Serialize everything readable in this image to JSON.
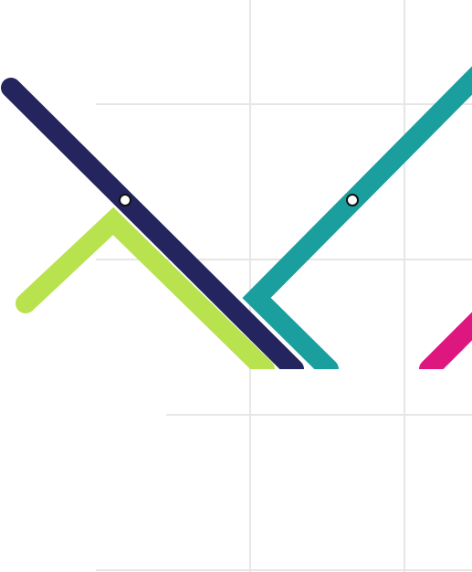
{
  "map": {
    "routes": [
      {
        "id": "navy",
        "color": "#24245e"
      },
      {
        "id": "lime",
        "color": "#b8e34e"
      },
      {
        "id": "teal",
        "color": "#1a9e9e"
      },
      {
        "id": "magenta",
        "color": "#de1680"
      }
    ],
    "grid_color": "#e6e6e6",
    "station_fill": "#ffffff",
    "station_stroke": "#111111"
  }
}
